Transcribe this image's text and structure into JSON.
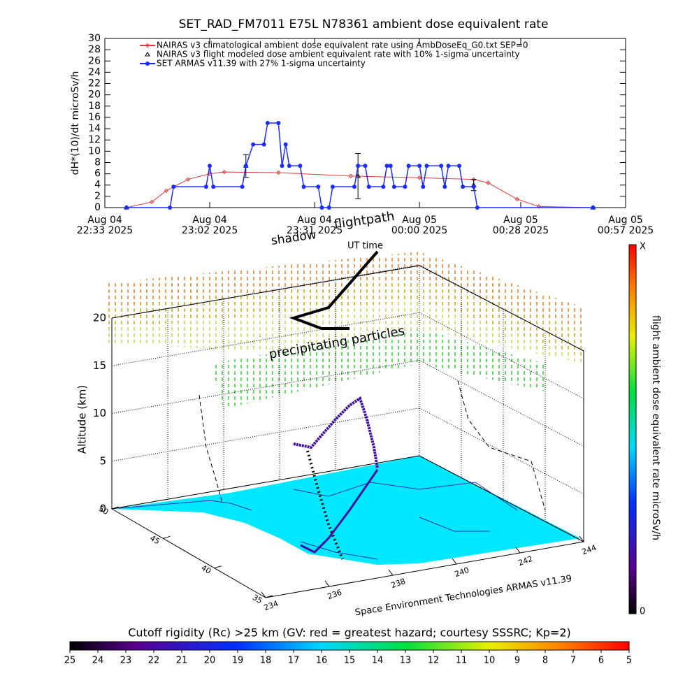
{
  "chart_data": [
    {
      "type": "line",
      "title": "SET_RAD_FM7011  E75L N78361 ambient dose equivalent rate",
      "ylabel": "dH*(10)/dt microSv/h",
      "ylim": [
        0,
        30
      ],
      "yticks": [
        0,
        2,
        4,
        6,
        8,
        10,
        12,
        14,
        16,
        18,
        20,
        22,
        24,
        26,
        28,
        30
      ],
      "xlim": [
        "2025-08-04T22:33",
        "2025-08-05T00:57"
      ],
      "xticks": [
        {
          "value": "2025-08-04T22:33",
          "label": [
            "Aug 04",
            "22:33 2025"
          ]
        },
        {
          "value": "2025-08-04T23:02",
          "label": [
            "Aug 04",
            "23:02 2025"
          ]
        },
        {
          "value": "2025-08-04T23:31",
          "label": [
            "Aug 04",
            "23:31 2025"
          ]
        },
        {
          "value": "2025-08-05T00:00",
          "label": [
            "Aug 05",
            "00:00 2025"
          ]
        },
        {
          "value": "2025-08-05T00:28",
          "label": [
            "Aug 05",
            "00:28 2025"
          ]
        },
        {
          "value": "2025-08-05T00:57",
          "label": [
            "Aug 05",
            "00:57 2025"
          ]
        }
      ],
      "series": [
        {
          "name": "NAIRAS v3 climatological ambient dose equivalent rate using AmbDoseEq_G0.txt SEP=0",
          "color": "#e03c3c",
          "marker": "diamond",
          "line": true,
          "x": [
            "2025-08-04T22:39",
            "2025-08-04T22:46",
            "2025-08-04T22:50",
            "2025-08-04T22:56",
            "2025-08-04T23:02",
            "2025-08-04T23:06",
            "2025-08-04T23:21",
            "2025-08-04T23:41",
            "2025-08-05T00:00",
            "2025-08-05T00:15",
            "2025-08-05T00:19",
            "2025-08-05T00:27",
            "2025-08-05T00:33",
            "2025-08-05T00:48"
          ],
          "values": [
            0,
            1,
            3,
            5,
            6,
            6.3,
            6.2,
            5.6,
            5.3,
            5,
            4.4,
            1.5,
            0.2,
            0
          ]
        },
        {
          "name": "NAIRAS v3 flight modeled dose ambient equivalent rate with 10% 1-sigma uncertainty",
          "color": "#000000",
          "marker": "triangle",
          "line": false,
          "x": [
            "2025-08-04T22:39",
            "2025-08-04T23:12",
            "2025-08-04T23:43",
            "2025-08-05T00:15",
            "2025-08-05T00:48"
          ],
          "values": [
            0,
            7.4,
            5.6,
            4,
            0
          ],
          "errors": [
            0,
            2,
            4,
            1,
            0
          ]
        },
        {
          "name": "SET ARMAS v11.39 with 27% 1-sigma uncertainty",
          "color": "#1a2cff",
          "marker": "circle",
          "line": true,
          "x": [
            "2025-08-04T22:39",
            "2025-08-04T22:51",
            "2025-08-04T22:52",
            "2025-08-04T23:01",
            "2025-08-04T23:02",
            "2025-08-04T23:03",
            "2025-08-04T23:11",
            "2025-08-04T23:12",
            "2025-08-04T23:14",
            "2025-08-04T23:17",
            "2025-08-04T23:18",
            "2025-08-04T23:21",
            "2025-08-04T23:22",
            "2025-08-04T23:23",
            "2025-08-04T23:24",
            "2025-08-04T23:27",
            "2025-08-04T23:28",
            "2025-08-04T23:32",
            "2025-08-04T23:33",
            "2025-08-04T23:35",
            "2025-08-04T23:36",
            "2025-08-04T23:42",
            "2025-08-04T23:43",
            "2025-08-04T23:45",
            "2025-08-04T23:46",
            "2025-08-04T23:50",
            "2025-08-04T23:51",
            "2025-08-04T23:52",
            "2025-08-04T23:53",
            "2025-08-04T23:56",
            "2025-08-04T23:57",
            "2025-08-05T00:00",
            "2025-08-05T00:01",
            "2025-08-05T00:02",
            "2025-08-05T00:06",
            "2025-08-05T00:07",
            "2025-08-05T00:08",
            "2025-08-05T00:11",
            "2025-08-05T00:12",
            "2025-08-05T00:15",
            "2025-08-05T00:16",
            "2025-08-05T00:48"
          ],
          "values": [
            0,
            0,
            3.7,
            3.7,
            7.4,
            3.7,
            3.7,
            7.4,
            11.2,
            11.2,
            15,
            15,
            7.4,
            11.2,
            7.4,
            7.4,
            3.7,
            3.7,
            0,
            0,
            3.7,
            3.7,
            7.4,
            7.4,
            3.7,
            3.7,
            7.4,
            7.4,
            3.7,
            3.7,
            7.4,
            7.4,
            3.7,
            7.4,
            7.4,
            3.7,
            7.4,
            7.4,
            3.7,
            3.7,
            0,
            0
          ]
        }
      ]
    },
    {
      "type": "surface3d",
      "annotations": [
        "shadow",
        "flightpath",
        "UT time",
        "precipitating particles"
      ],
      "zlabel": "Altitude (km)",
      "zlim": [
        0,
        20
      ],
      "zticks": [
        0,
        5,
        10,
        15,
        20
      ],
      "ylim": [
        50,
        35
      ],
      "yticks": [
        50,
        45,
        40,
        35
      ],
      "xlim": [
        234,
        244
      ],
      "xticks": [
        234,
        236,
        238,
        240,
        242,
        244
      ],
      "credit": "Space Environment Technologies ARMAS v11.39",
      "colorbar_label": "flight ambient dose equivalent rate microSv/h",
      "colorbar_max_label": "X",
      "colorbar_min_label": "0"
    },
    {
      "type": "colorbar",
      "title": "Cutoff rigidity (Rc) >25 km (GV: red = greatest hazard; courtesy SSSRC; Kp=2)",
      "clim": [
        25,
        5
      ],
      "ticks": [
        25,
        24,
        23,
        22,
        21,
        20,
        19,
        18,
        17,
        16,
        15,
        14,
        13,
        12,
        11,
        10,
        9,
        8,
        7,
        6,
        5
      ]
    }
  ]
}
